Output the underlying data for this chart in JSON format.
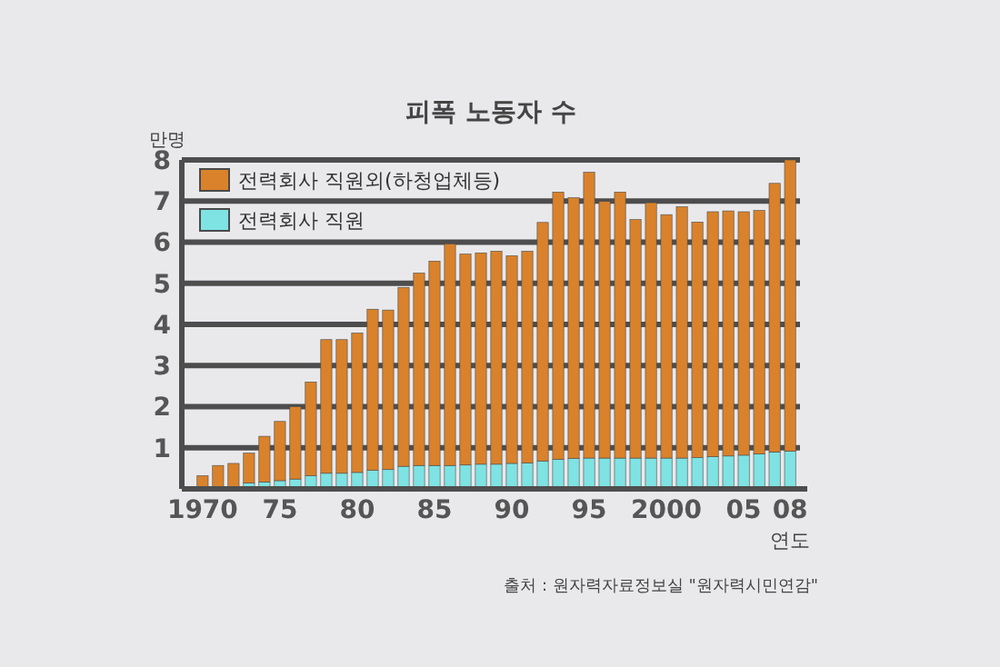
{
  "chart_data": {
    "type": "bar",
    "title": "피폭 노동자 수",
    "ylabel": "만명",
    "xlabel": "연도",
    "categories": [
      "1970",
      null,
      null,
      null,
      null,
      "75",
      null,
      null,
      null,
      null,
      "80",
      null,
      null,
      null,
      null,
      "85",
      null,
      null,
      null,
      null,
      "90",
      null,
      null,
      null,
      null,
      "95",
      null,
      null,
      null,
      null,
      "2000",
      null,
      null,
      null,
      null,
      "05",
      null,
      null,
      "08"
    ],
    "stacked": true,
    "series": [
      {
        "name": "전력회사 직원",
        "color": "#7fe3e3",
        "values": [
          null,
          null,
          null,
          0.14,
          0.17,
          0.2,
          0.24,
          0.32,
          0.38,
          0.38,
          0.4,
          0.45,
          0.47,
          0.55,
          0.57,
          0.57,
          0.57,
          0.58,
          0.6,
          0.6,
          0.62,
          0.63,
          0.68,
          0.72,
          0.74,
          0.75,
          0.75,
          0.75,
          0.75,
          0.75,
          0.75,
          0.75,
          0.76,
          0.78,
          0.8,
          0.82,
          0.85,
          0.9,
          0.92
        ]
      },
      {
        "name": "전력회사 직원외(하청업체등)",
        "color": "#d9822b",
        "values": [
          0.32,
          0.57,
          0.62,
          0.73,
          1.11,
          1.44,
          1.76,
          2.28,
          3.25,
          3.25,
          3.39,
          3.92,
          3.88,
          4.35,
          4.68,
          4.97,
          5.39,
          5.13,
          5.14,
          5.18,
          5.05,
          5.15,
          5.8,
          6.5,
          6.34,
          6.95,
          6.24,
          6.47,
          5.8,
          6.21,
          5.92,
          6.11,
          5.73,
          5.96,
          5.96,
          5.92,
          5.92,
          6.53,
          7.08
        ]
      }
    ],
    "ylim": [
      0,
      8
    ],
    "yticks": [
      1,
      2,
      3,
      4,
      5,
      6,
      7,
      8
    ],
    "grid": "y",
    "legend": "top left",
    "annotations": [
      "출처 : 원자력자료정보실 \"원자력시민연감\""
    ]
  }
}
